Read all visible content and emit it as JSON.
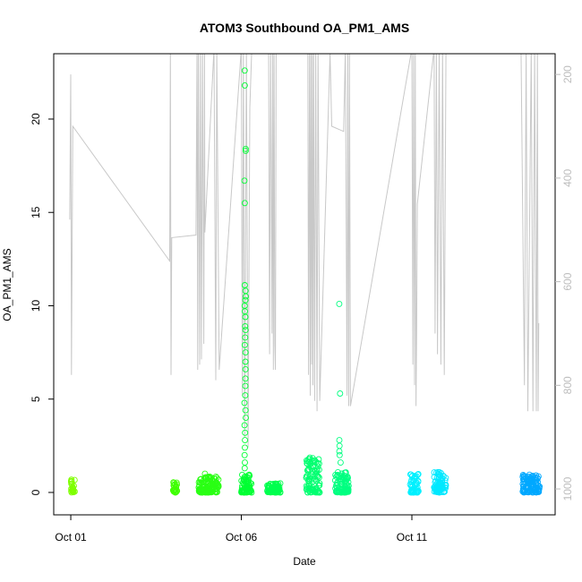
{
  "chart_data": {
    "type": "scatter",
    "title": "ATOM3 Southbound OA_PM1_AMS",
    "xlabel": "Date",
    "ylabel": "OA_PM1_AMS",
    "x_start": "Oct 01",
    "xlim_days": [
      -0.5,
      14.2
    ],
    "x_ticks": [
      {
        "label": "Oct 01",
        "day": 0
      },
      {
        "label": "Oct 06",
        "day": 5
      },
      {
        "label": "Oct 11",
        "day": 10
      }
    ],
    "ylim": [
      -1.2,
      23.5
    ],
    "y_ticks": [
      0,
      5,
      10,
      15,
      20
    ],
    "y2_label": "",
    "y2_ticks": [
      200,
      400,
      600,
      800,
      1000
    ],
    "y2_lim": [
      1050,
      160
    ],
    "y2_reversed": true,
    "grid": false,
    "legend": "none",
    "colors": {
      "axis": "#000000",
      "right_axis": "#bdbdbd",
      "altitude_line": "#c8c8c8"
    },
    "series": [
      {
        "day_from": 0.0,
        "day_to": 0.12,
        "values_typical": [
          0,
          0.7
        ],
        "color": "#7fff00"
      },
      {
        "day_from": 3.0,
        "day_to": 3.12,
        "values_typical": [
          0,
          0.55
        ],
        "color": "#3fff00"
      },
      {
        "day_from": 3.75,
        "day_to": 4.35,
        "values_typical": [
          0,
          0.85
        ],
        "color": "#2aff14",
        "outliers": [
          1.0
        ]
      },
      {
        "day_from": 5.0,
        "day_to": 5.3,
        "values_typical": [
          0,
          1.0
        ],
        "color": "#00ff33",
        "outliers": [
          22.6,
          21.8,
          18.4,
          18.3,
          16.7,
          15.5,
          11.1,
          10.8,
          10.5,
          10.3,
          10.0,
          9.7,
          9.4,
          8.9,
          8.7,
          8.3,
          7.9,
          7.5,
          7.0,
          6.6,
          6.1,
          5.7,
          5.2,
          4.8,
          4.4,
          4.0,
          3.6,
          3.2,
          2.8,
          2.4,
          2.0,
          1.6,
          1.3
        ]
      },
      {
        "day_from": 5.75,
        "day_to": 6.15,
        "values_typical": [
          0,
          0.5
        ],
        "color": "#00ff4f"
      },
      {
        "day_from": 6.9,
        "day_to": 7.3,
        "values_typical": [
          0,
          1.9
        ],
        "color": "#00ff70"
      },
      {
        "day_from": 7.75,
        "day_to": 8.15,
        "values_typical": [
          0,
          1.2
        ],
        "color": "#00ff80",
        "outliers": [
          10.1,
          5.3,
          2.8,
          2.5,
          2.2,
          2.0,
          1.6
        ]
      },
      {
        "day_from": 9.95,
        "day_to": 10.2,
        "values_typical": [
          0,
          1.0
        ],
        "color": "#00f0ff"
      },
      {
        "day_from": 10.65,
        "day_to": 11.0,
        "values_typical": [
          0,
          1.1
        ],
        "color": "#00e8ff"
      },
      {
        "day_from": 13.25,
        "day_to": 13.75,
        "values_typical": [
          0,
          0.95
        ],
        "color": "#00a8ff"
      }
    ],
    "altitude_line": [
      [
        -0.03,
        480
      ],
      [
        0.0,
        200
      ],
      [
        0.02,
        780
      ],
      [
        0.06,
        300
      ],
      [
        2.9,
        560
      ],
      [
        2.92,
        150
      ],
      [
        2.94,
        780
      ],
      [
        2.96,
        515
      ],
      [
        3.67,
        510
      ],
      [
        3.7,
        150
      ],
      [
        3.72,
        770
      ],
      [
        3.74,
        150
      ],
      [
        3.78,
        760
      ],
      [
        3.8,
        150
      ],
      [
        3.83,
        750
      ],
      [
        3.86,
        150
      ],
      [
        3.9,
        720
      ],
      [
        3.92,
        150
      ],
      [
        3.93,
        505
      ],
      [
        4.2,
        150
      ],
      [
        4.25,
        790
      ],
      [
        4.28,
        150
      ],
      [
        4.35,
        770
      ],
      [
        5.0,
        150
      ],
      [
        5.03,
        820
      ],
      [
        5.06,
        150
      ],
      [
        5.1,
        900
      ],
      [
        5.15,
        160
      ],
      [
        5.2,
        920
      ],
      [
        5.25,
        265
      ],
      [
        5.3,
        160
      ],
      [
        5.8,
        150
      ],
      [
        5.83,
        740
      ],
      [
        5.86,
        150
      ],
      [
        5.9,
        700
      ],
      [
        5.92,
        150
      ],
      [
        5.94,
        770
      ],
      [
        5.96,
        150
      ],
      [
        5.98,
        720
      ],
      [
        6.0,
        770
      ],
      [
        6.02,
        150
      ],
      [
        6.95,
        150
      ],
      [
        6.97,
        780
      ],
      [
        7.0,
        150
      ],
      [
        7.02,
        820
      ],
      [
        7.04,
        150
      ],
      [
        7.06,
        760
      ],
      [
        7.08,
        150
      ],
      [
        7.1,
        800
      ],
      [
        7.12,
        150
      ],
      [
        7.15,
        830
      ],
      [
        7.18,
        160
      ],
      [
        7.22,
        850
      ],
      [
        7.25,
        150
      ],
      [
        7.3,
        830
      ],
      [
        7.6,
        160
      ],
      [
        7.65,
        300
      ],
      [
        8.0,
        310
      ],
      [
        8.05,
        150
      ],
      [
        8.1,
        820
      ],
      [
        8.12,
        150
      ],
      [
        8.15,
        840
      ],
      [
        8.17,
        150
      ],
      [
        8.2,
        840
      ],
      [
        10.0,
        150
      ],
      [
        10.03,
        760
      ],
      [
        10.05,
        150
      ],
      [
        10.08,
        800
      ],
      [
        10.1,
        150
      ],
      [
        10.12,
        840
      ],
      [
        10.14,
        700
      ],
      [
        10.16,
        450
      ],
      [
        10.65,
        150
      ],
      [
        10.68,
        700
      ],
      [
        10.72,
        150
      ],
      [
        10.75,
        740
      ],
      [
        10.8,
        150
      ],
      [
        10.85,
        760
      ],
      [
        10.9,
        150
      ],
      [
        10.95,
        780
      ],
      [
        11.0,
        150
      ],
      [
        13.2,
        150
      ],
      [
        13.3,
        800
      ],
      [
        13.35,
        150
      ],
      [
        13.4,
        850
      ],
      [
        13.5,
        150
      ],
      [
        13.55,
        850
      ],
      [
        13.6,
        150
      ],
      [
        13.65,
        850
      ],
      [
        13.68,
        150
      ],
      [
        13.7,
        850
      ],
      [
        13.72,
        680
      ]
    ]
  }
}
